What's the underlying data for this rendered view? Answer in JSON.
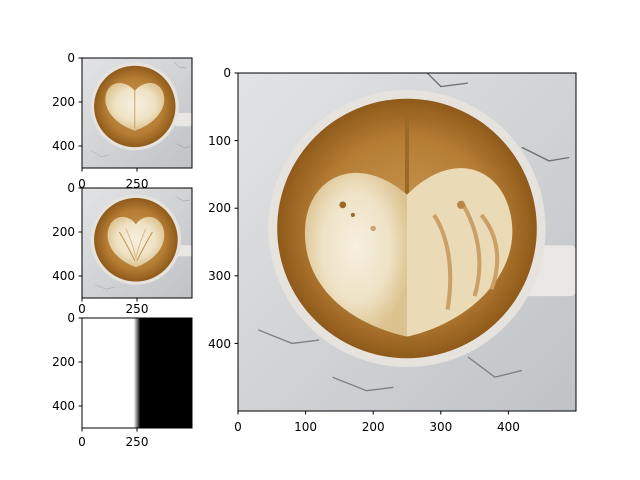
{
  "chart_data": [
    {
      "type": "image",
      "content": "latte art photo (small view)",
      "xlim": [
        0,
        500
      ],
      "ylim": [
        500,
        0
      ],
      "xticks": [
        0,
        250
      ],
      "yticks": [
        0,
        200,
        400
      ],
      "xtick_labels": [
        "0",
        "250"
      ],
      "ytick_labels": [
        "0",
        "200",
        "400"
      ]
    },
    {
      "type": "image",
      "content": "latte art photo, blended heart (small view)",
      "xlim": [
        0,
        500
      ],
      "ylim": [
        500,
        0
      ],
      "xticks": [
        0,
        250
      ],
      "yticks": [
        0,
        200,
        400
      ],
      "xtick_labels": [
        "0",
        "250"
      ],
      "ytick_labels": [
        "0",
        "200",
        "400"
      ]
    },
    {
      "type": "image",
      "content": "blend mask: white left, black right, soft edge at x=250",
      "xlim": [
        0,
        500
      ],
      "ylim": [
        500,
        0
      ],
      "xticks": [
        0,
        250
      ],
      "yticks": [
        0,
        200,
        400
      ],
      "xtick_labels": [
        "0",
        "250"
      ],
      "ytick_labels": [
        "0",
        "200",
        "400"
      ],
      "mask_edge_x": 250
    },
    {
      "type": "image",
      "content": "latte art photo, blended result (large view)",
      "xlim": [
        0,
        500
      ],
      "ylim": [
        500,
        0
      ],
      "xticks": [
        0,
        100,
        200,
        300,
        400
      ],
      "yticks": [
        0,
        100,
        200,
        300,
        400
      ],
      "xtick_labels": [
        "0",
        "100",
        "200",
        "300",
        "400"
      ],
      "ytick_labels": [
        "0",
        "100",
        "200",
        "300",
        "400"
      ]
    }
  ],
  "colors": {
    "background": "#ffffff",
    "table": "#c7c9cc",
    "table_light": "#d9dbdc",
    "cup_rim": "#e4e1dc",
    "crema_dark": "#8f5a1a",
    "crema": "#b57d34",
    "foam": "#f0e6cf",
    "foam_light": "#f7f0e0",
    "mask_white": "#ffffff",
    "mask_black": "#000000"
  }
}
